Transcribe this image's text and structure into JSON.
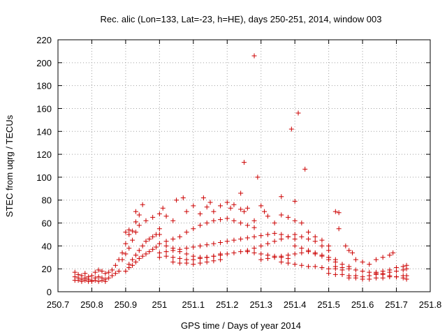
{
  "chart_data": {
    "type": "scatter",
    "title": "Rec. alic (Lon=133, Lat=-23, h=HE), days 250-251, 2014, window 003",
    "xlabel": "GPS time / Days of year 2014",
    "ylabel": "STEC from uqrg / TECUs",
    "xlim": [
      250.7,
      251.8
    ],
    "ylim": [
      0,
      220
    ],
    "x_ticks": [
      "250.7",
      "250.8",
      "250.9",
      "251",
      "251.1",
      "251.2",
      "251.3",
      "251.4",
      "251.5",
      "251.6",
      "251.7",
      "251.8"
    ],
    "y_ticks": [
      "0",
      "20",
      "40",
      "60",
      "80",
      "100",
      "120",
      "140",
      "160",
      "180",
      "200",
      "220"
    ],
    "grid": true,
    "marker": "+",
    "colors": {
      "series": "#cc0000"
    },
    "series": [
      {
        "points": [
          [
            250.75,
            17
          ],
          [
            250.76,
            15
          ],
          [
            250.77,
            14
          ],
          [
            250.78,
            16
          ],
          [
            250.79,
            13
          ],
          [
            250.8,
            14
          ],
          [
            250.81,
            17
          ],
          [
            250.82,
            19
          ],
          [
            250.83,
            18
          ],
          [
            250.84,
            16
          ],
          [
            250.85,
            17
          ],
          [
            250.86,
            19
          ],
          [
            250.87,
            23
          ],
          [
            250.88,
            28
          ],
          [
            250.89,
            34
          ],
          [
            250.9,
            42
          ],
          [
            250.91,
            50
          ],
          [
            250.75,
            13
          ],
          [
            250.76,
            12
          ],
          [
            250.77,
            11
          ],
          [
            250.78,
            12
          ],
          [
            250.79,
            11
          ],
          [
            250.8,
            10
          ],
          [
            250.81,
            12
          ],
          [
            250.82,
            13
          ],
          [
            250.83,
            12
          ],
          [
            250.84,
            11
          ],
          [
            250.85,
            12
          ],
          [
            250.86,
            14
          ],
          [
            250.87,
            16
          ],
          [
            250.88,
            18
          ],
          [
            250.75,
            10
          ],
          [
            250.76,
            10
          ],
          [
            250.77,
            9
          ],
          [
            250.78,
            10
          ],
          [
            250.79,
            9
          ],
          [
            250.8,
            9
          ],
          [
            250.81,
            10
          ],
          [
            250.82,
            9
          ],
          [
            250.83,
            10
          ],
          [
            250.84,
            9
          ],
          [
            250.89,
            28
          ],
          [
            250.9,
            33
          ],
          [
            250.91,
            38
          ],
          [
            250.92,
            45
          ],
          [
            250.93,
            52
          ],
          [
            250.94,
            58
          ],
          [
            250.96,
            62
          ],
          [
            250.98,
            65
          ],
          [
            251.0,
            68
          ],
          [
            250.91,
            24
          ],
          [
            250.92,
            28
          ],
          [
            250.93,
            32
          ],
          [
            250.94,
            36
          ],
          [
            250.95,
            40
          ],
          [
            250.96,
            44
          ],
          [
            250.97,
            46
          ],
          [
            250.98,
            48
          ],
          [
            250.99,
            50
          ],
          [
            250.9,
            18
          ],
          [
            250.91,
            21
          ],
          [
            250.92,
            23
          ],
          [
            250.93,
            26
          ],
          [
            250.94,
            29
          ],
          [
            250.95,
            31
          ],
          [
            250.96,
            33
          ],
          [
            250.97,
            35
          ],
          [
            250.98,
            37
          ],
          [
            250.99,
            39
          ],
          [
            250.9,
            52
          ],
          [
            250.91,
            54
          ],
          [
            250.92,
            53
          ],
          [
            250.93,
            61
          ],
          [
            250.94,
            67
          ],
          [
            250.93,
            70
          ],
          [
            250.95,
            76
          ],
          [
            251.0,
            55
          ],
          [
            251.0,
            50
          ],
          [
            251.01,
            73
          ],
          [
            251.02,
            66
          ],
          [
            251.04,
            62
          ],
          [
            251.05,
            80
          ],
          [
            251.07,
            82
          ],
          [
            251.08,
            70
          ],
          [
            251.1,
            75
          ],
          [
            251.12,
            68
          ],
          [
            251.13,
            82
          ],
          [
            251.14,
            74
          ],
          [
            251.15,
            78
          ],
          [
            251.16,
            70
          ],
          [
            251.18,
            75
          ],
          [
            251.2,
            78
          ],
          [
            251.21,
            73
          ],
          [
            251.22,
            76
          ],
          [
            251.24,
            72
          ],
          [
            251.25,
            70
          ],
          [
            251.26,
            73
          ],
          [
            251.28,
            62
          ],
          [
            251.3,
            75
          ],
          [
            251.31,
            70
          ],
          [
            251.32,
            66
          ],
          [
            251.34,
            60
          ],
          [
            251.36,
            67
          ],
          [
            251.38,
            65
          ],
          [
            251.4,
            62
          ],
          [
            251.42,
            60
          ],
          [
            251.0,
            42
          ],
          [
            251.02,
            44
          ],
          [
            251.04,
            46
          ],
          [
            251.06,
            48
          ],
          [
            251.08,
            52
          ],
          [
            251.1,
            55
          ],
          [
            251.12,
            58
          ],
          [
            251.14,
            60
          ],
          [
            251.16,
            62
          ],
          [
            251.18,
            63
          ],
          [
            251.2,
            64
          ],
          [
            251.22,
            62
          ],
          [
            251.24,
            60
          ],
          [
            251.26,
            58
          ],
          [
            251.28,
            56
          ],
          [
            251.0,
            34
          ],
          [
            251.02,
            35
          ],
          [
            251.04,
            36
          ],
          [
            251.06,
            37
          ],
          [
            251.08,
            38
          ],
          [
            251.1,
            39
          ],
          [
            251.12,
            40
          ],
          [
            251.14,
            41
          ],
          [
            251.16,
            42
          ],
          [
            251.18,
            43
          ],
          [
            251.2,
            44
          ],
          [
            251.22,
            45
          ],
          [
            251.24,
            46
          ],
          [
            251.26,
            47
          ],
          [
            251.28,
            48
          ],
          [
            251.3,
            49
          ],
          [
            251.32,
            50
          ],
          [
            251.34,
            51
          ],
          [
            251.36,
            50
          ],
          [
            251.38,
            48
          ],
          [
            251.4,
            46
          ],
          [
            251.0,
            30
          ],
          [
            251.02,
            31
          ],
          [
            251.04,
            30
          ],
          [
            251.06,
            29
          ],
          [
            251.08,
            28
          ],
          [
            251.1,
            28
          ],
          [
            251.12,
            29
          ],
          [
            251.14,
            30
          ],
          [
            251.16,
            31
          ],
          [
            251.18,
            32
          ],
          [
            251.2,
            33
          ],
          [
            251.22,
            34
          ],
          [
            251.24,
            35
          ],
          [
            251.26,
            35
          ],
          [
            251.28,
            34
          ],
          [
            251.3,
            33
          ],
          [
            251.32,
            32
          ],
          [
            251.34,
            31
          ],
          [
            251.36,
            30
          ],
          [
            251.38,
            29
          ],
          [
            251.02,
            40
          ],
          [
            251.04,
            38
          ],
          [
            251.06,
            35
          ],
          [
            251.08,
            33
          ],
          [
            251.1,
            31
          ],
          [
            251.12,
            30
          ],
          [
            251.14,
            30
          ],
          [
            251.16,
            31
          ],
          [
            251.18,
            33
          ],
          [
            251.04,
            26
          ],
          [
            251.06,
            25
          ],
          [
            251.08,
            25
          ],
          [
            251.1,
            24
          ],
          [
            251.12,
            25
          ],
          [
            251.14,
            26
          ],
          [
            251.16,
            27
          ],
          [
            251.18,
            28
          ],
          [
            251.24,
            86
          ],
          [
            251.25,
            113
          ],
          [
            251.28,
            206
          ],
          [
            251.29,
            100
          ],
          [
            251.36,
            83
          ],
          [
            251.39,
            142
          ],
          [
            251.4,
            79
          ],
          [
            251.41,
            156
          ],
          [
            251.43,
            107
          ],
          [
            251.26,
            36
          ],
          [
            251.28,
            38
          ],
          [
            251.3,
            40
          ],
          [
            251.32,
            42
          ],
          [
            251.34,
            44
          ],
          [
            251.36,
            46
          ],
          [
            251.38,
            48
          ],
          [
            251.4,
            50
          ],
          [
            251.42,
            48
          ],
          [
            251.44,
            46
          ],
          [
            251.46,
            44
          ],
          [
            251.48,
            40
          ],
          [
            251.5,
            36
          ],
          [
            251.3,
            28
          ],
          [
            251.32,
            29
          ],
          [
            251.34,
            30
          ],
          [
            251.36,
            31
          ],
          [
            251.38,
            32
          ],
          [
            251.4,
            33
          ],
          [
            251.42,
            34
          ],
          [
            251.44,
            35
          ],
          [
            251.46,
            34
          ],
          [
            251.48,
            32
          ],
          [
            251.5,
            30
          ],
          [
            251.52,
            28
          ],
          [
            251.36,
            26
          ],
          [
            251.38,
            25
          ],
          [
            251.4,
            24
          ],
          [
            251.42,
            23
          ],
          [
            251.44,
            22
          ],
          [
            251.46,
            22
          ],
          [
            251.48,
            21
          ],
          [
            251.5,
            20
          ],
          [
            251.52,
            20
          ],
          [
            251.54,
            19
          ],
          [
            251.4,
            40
          ],
          [
            251.42,
            38
          ],
          [
            251.44,
            36
          ],
          [
            251.46,
            33
          ],
          [
            251.48,
            31
          ],
          [
            251.5,
            28
          ],
          [
            251.52,
            26
          ],
          [
            251.54,
            24
          ],
          [
            251.56,
            22
          ],
          [
            251.44,
            52
          ],
          [
            251.46,
            48
          ],
          [
            251.48,
            45
          ],
          [
            251.5,
            40
          ],
          [
            251.52,
            70
          ],
          [
            251.53,
            69
          ],
          [
            251.53,
            55
          ],
          [
            251.55,
            40
          ],
          [
            251.56,
            36
          ],
          [
            251.57,
            34
          ],
          [
            251.5,
            16
          ],
          [
            251.52,
            15
          ],
          [
            251.54,
            15
          ],
          [
            251.56,
            14
          ],
          [
            251.58,
            14
          ],
          [
            251.6,
            13
          ],
          [
            251.62,
            14
          ],
          [
            251.64,
            15
          ],
          [
            251.66,
            16
          ],
          [
            251.68,
            17
          ],
          [
            251.7,
            18
          ],
          [
            251.72,
            19
          ],
          [
            251.73,
            20
          ],
          [
            251.52,
            22
          ],
          [
            251.54,
            21
          ],
          [
            251.56,
            20
          ],
          [
            251.58,
            19
          ],
          [
            251.6,
            18
          ],
          [
            251.62,
            17
          ],
          [
            251.64,
            17
          ],
          [
            251.66,
            18
          ],
          [
            251.68,
            19
          ],
          [
            251.7,
            21
          ],
          [
            251.72,
            22
          ],
          [
            251.73,
            23
          ],
          [
            251.56,
            12
          ],
          [
            251.58,
            12
          ],
          [
            251.6,
            11
          ],
          [
            251.62,
            11
          ],
          [
            251.64,
            12
          ],
          [
            251.66,
            12
          ],
          [
            251.68,
            13
          ],
          [
            251.7,
            13
          ],
          [
            251.72,
            14
          ],
          [
            251.73,
            14
          ],
          [
            251.58,
            28
          ],
          [
            251.6,
            26
          ],
          [
            251.62,
            24
          ],
          [
            251.64,
            28
          ],
          [
            251.66,
            30
          ],
          [
            251.68,
            32
          ],
          [
            251.69,
            34
          ],
          [
            251.64,
            16
          ],
          [
            251.66,
            15
          ],
          [
            251.68,
            14
          ],
          [
            251.7,
            13
          ],
          [
            251.72,
            12
          ],
          [
            251.73,
            11
          ]
        ]
      }
    ]
  }
}
